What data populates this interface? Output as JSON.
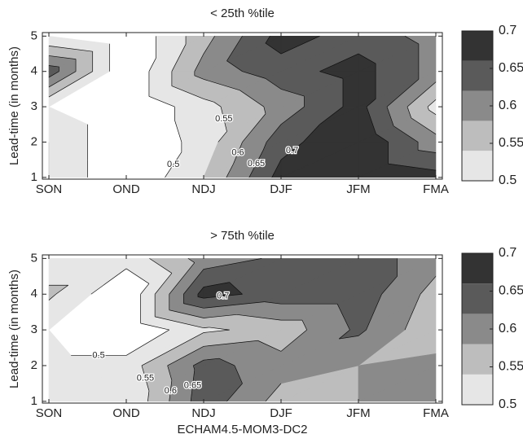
{
  "chart_data": [
    {
      "type": "contour",
      "title": "< 25th %tile",
      "ylabel": "Lead-time (in months)",
      "categories": [
        "SON",
        "OND",
        "NDJ",
        "DJF",
        "JFM",
        "FMA"
      ],
      "y": [
        1,
        2,
        3,
        4,
        5
      ],
      "z": [
        [
          0.55,
          0.45,
          0.55,
          0.72,
          0.75,
          0.72
        ],
        [
          0.55,
          0.45,
          0.52,
          0.68,
          0.75,
          0.62
        ],
        [
          0.5,
          0.45,
          0.53,
          0.62,
          0.72,
          0.53
        ],
        [
          0.68,
          0.45,
          0.62,
          0.68,
          0.72,
          0.63
        ],
        [
          0.5,
          0.45,
          0.58,
          0.72,
          0.68,
          0.63
        ]
      ],
      "ylim": [
        0.95,
        5.1
      ],
      "yticks": [
        1,
        2,
        3,
        4,
        5
      ],
      "levels": [
        0.5,
        0.55,
        0.6,
        0.65,
        0.7
      ],
      "colors": [
        "#ffffff",
        "#e6e6e6",
        "#bdbdbd",
        "#8a8a8a",
        "#5a5a5a",
        "#333333"
      ]
    },
    {
      "type": "contour",
      "title": "> 75th %tile",
      "ylabel": "Lead-time (in months)",
      "xlabel": "ECHAM4.5-MOM3-DC2",
      "categories": [
        "SON",
        "OND",
        "NDJ",
        "DJF",
        "JFM",
        "FMA"
      ],
      "y": [
        1,
        2,
        3,
        4,
        5
      ],
      "z": [
        [
          0.52,
          0.5,
          0.68,
          0.58,
          0.6,
          0.6
        ],
        [
          0.52,
          0.52,
          0.67,
          0.62,
          0.6,
          0.62
        ],
        [
          0.5,
          0.45,
          0.54,
          0.57,
          0.66,
          0.56
        ],
        [
          0.56,
          0.45,
          0.72,
          0.68,
          0.68,
          0.58
        ],
        [
          0.52,
          0.52,
          0.62,
          0.66,
          0.68,
          0.62
        ]
      ],
      "ylim": [
        0.95,
        5.1
      ],
      "yticks": [
        1,
        2,
        3,
        4,
        5
      ],
      "levels": [
        0.5,
        0.55,
        0.6,
        0.65,
        0.7
      ],
      "colors": [
        "#ffffff",
        "#e6e6e6",
        "#bdbdbd",
        "#8a8a8a",
        "#5a5a5a",
        "#333333"
      ]
    }
  ]
}
